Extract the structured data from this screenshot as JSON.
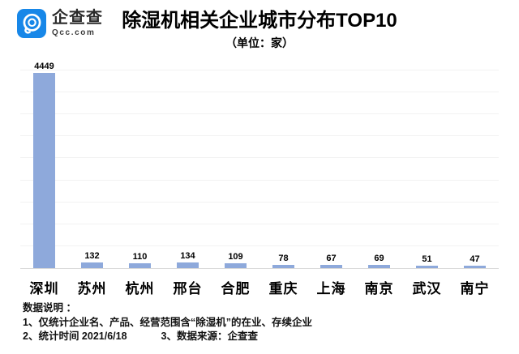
{
  "header": {
    "logo": {
      "brand": "企查查",
      "domain": "Qcc.com",
      "brand_color": "#1787E8"
    },
    "title": "除湿机相关企业城市分布TOP10",
    "subtitle": "（单位：家）"
  },
  "chart_data": {
    "type": "bar",
    "title": "除湿机相关企业城市分布TOP10",
    "unit_label": "（单位：家）",
    "categories": [
      "深圳",
      "苏州",
      "杭州",
      "邢台",
      "合肥",
      "重庆",
      "上海",
      "南京",
      "武汉",
      "南宁"
    ],
    "values": [
      4449,
      132,
      110,
      134,
      109,
      78,
      67,
      69,
      51,
      47
    ],
    "xlabel": "",
    "ylabel": "",
    "ylim": [
      0,
      4500
    ],
    "grid_step": 500,
    "grid": true,
    "value_labels": true,
    "legend": "none",
    "bar_color": "#8EA9DB",
    "gridline_color": "#f2f2f2",
    "axis_line_color": "#d9d9d9"
  },
  "footer": {
    "line1": "数据说明 ：",
    "line2": "1、仅统计企业名、产品、经营范围含“除湿机”的在业、存续企业",
    "line3_part1": "2、统计时间 2021/6/18",
    "line3_part2": "3、数据来源：企查查"
  }
}
